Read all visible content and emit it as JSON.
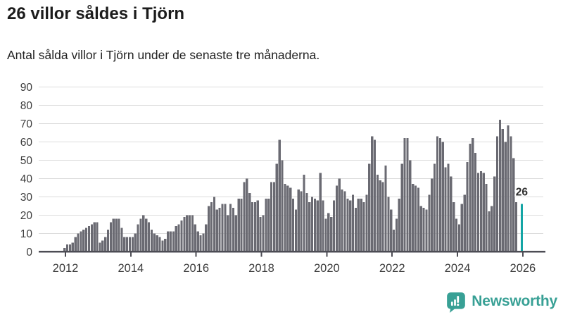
{
  "header": {
    "title": "26 villor såldes i Tjörn",
    "subtitle": "Antal sålda villor i Tjörn under de senaste tre månaderna."
  },
  "chart_data": {
    "type": "bar",
    "title": "26 villor såldes i Tjörn",
    "xlabel": "",
    "ylabel": "",
    "ylim": [
      0,
      90
    ],
    "yticks": [
      0,
      10,
      20,
      30,
      40,
      50,
      60,
      70,
      80,
      90
    ],
    "xticks": [
      2012,
      2014,
      2016,
      2018,
      2020,
      2022,
      2024,
      2026
    ],
    "grid": true,
    "legend": "none",
    "start_month": "2011-12",
    "values": [
      2,
      4,
      4,
      5,
      8,
      10,
      11,
      12,
      13,
      14,
      15,
      16,
      16,
      5,
      6,
      8,
      12,
      16,
      18,
      18,
      18,
      13,
      8,
      8,
      8,
      8,
      10,
      15,
      18,
      20,
      18,
      16,
      12,
      10,
      9,
      8,
      6,
      7,
      11,
      11,
      11,
      14,
      15,
      17,
      19,
      20,
      20,
      20,
      15,
      11,
      9,
      10,
      15,
      25,
      27,
      30,
      23,
      24,
      26,
      26,
      20,
      26,
      24,
      20,
      29,
      29,
      38,
      40,
      32,
      27,
      27,
      28,
      19,
      20,
      29,
      29,
      38,
      38,
      48,
      61,
      50,
      37,
      36,
      35,
      29,
      23,
      34,
      33,
      42,
      32,
      27,
      30,
      29,
      28,
      43,
      28,
      18,
      21,
      19,
      28,
      36,
      40,
      34,
      33,
      29,
      28,
      31,
      24,
      29,
      29,
      27,
      31,
      48,
      63,
      61,
      42,
      39,
      38,
      47,
      30,
      23,
      12,
      18,
      29,
      48,
      62,
      62,
      50,
      37,
      36,
      35,
      25,
      24,
      23,
      31,
      40,
      48,
      63,
      62,
      60,
      46,
      48,
      41,
      27,
      18,
      15,
      26,
      31,
      49,
      59,
      62,
      54,
      43,
      44,
      43,
      37,
      22,
      25,
      41,
      63,
      72,
      67,
      60,
      69,
      63,
      51,
      27,
      null,
      26
    ],
    "highlight_last_bar": true,
    "annotation": {
      "text": "26",
      "value": 26
    }
  },
  "colors": {
    "bar": "#6a6a72",
    "highlight": "#14a5a5",
    "grid": "#dcdcdc",
    "axis": "#4c4c54",
    "tick_text": "#3c3c3c",
    "annotation_text": "#2e2e2e",
    "brand": "#38a095"
  },
  "footer": {
    "brand": "Newsworthy",
    "icon": "newsworthy-logo-icon"
  }
}
